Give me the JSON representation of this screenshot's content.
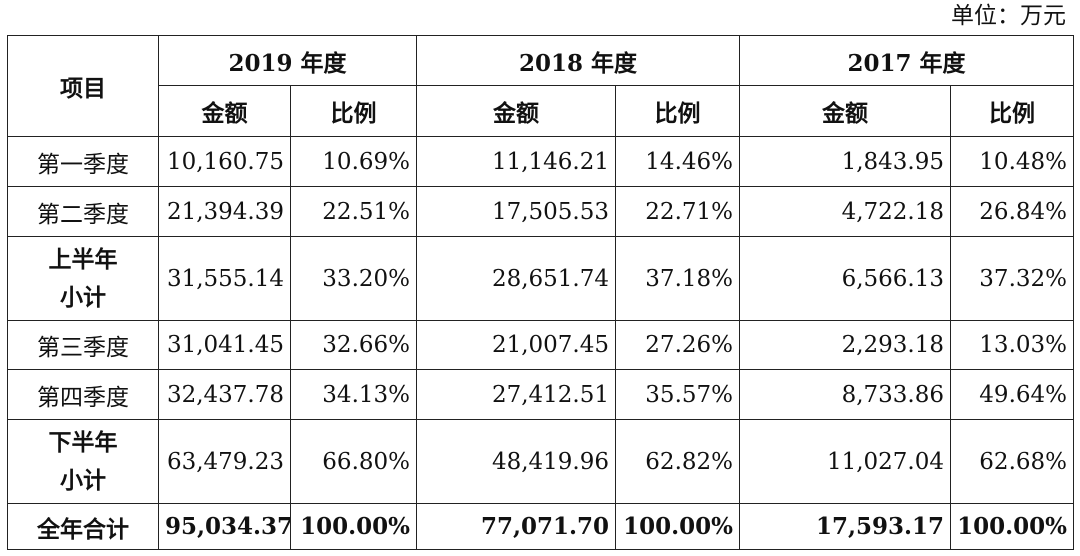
{
  "unit_note": "单位：万元",
  "table": {
    "item_header": "项目",
    "years": [
      "2019 年度",
      "2018 年度",
      "2017 年度"
    ],
    "amount_header": "金额",
    "ratio_header": "比例",
    "rows": [
      {
        "label": "第一季度",
        "bold": false,
        "cells": [
          "10,160.75",
          "10.69%",
          "11,146.21",
          "14.46%",
          "1,843.95",
          "10.48%"
        ]
      },
      {
        "label": "第二季度",
        "bold": false,
        "cells": [
          "21,394.39",
          "22.51%",
          "17,505.53",
          "22.71%",
          "4,722.18",
          "26.84%"
        ]
      },
      {
        "label": "上半年小计",
        "label_line1": "上半年",
        "label_line2": "小计",
        "bold": false,
        "cells": [
          "31,555.14",
          "33.20%",
          "28,651.74",
          "37.18%",
          "6,566.13",
          "37.32%"
        ]
      },
      {
        "label": "第三季度",
        "bold": false,
        "cells": [
          "31,041.45",
          "32.66%",
          "21,007.45",
          "27.26%",
          "2,293.18",
          "13.03%"
        ]
      },
      {
        "label": "第四季度",
        "bold": false,
        "cells": [
          "32,437.78",
          "34.13%",
          "27,412.51",
          "35.57%",
          "8,733.86",
          "49.64%"
        ]
      },
      {
        "label": "下半年小计",
        "label_line1": "下半年",
        "label_line2": "小计",
        "bold": false,
        "cells": [
          "63,479.23",
          "66.80%",
          "48,419.96",
          "62.82%",
          "11,027.04",
          "62.68%"
        ]
      },
      {
        "label": "全年合计",
        "bold": true,
        "cells": [
          "95,034.37",
          "100.00%",
          "77,071.70",
          "100.00%",
          "17,593.17",
          "100.00%"
        ]
      }
    ]
  }
}
